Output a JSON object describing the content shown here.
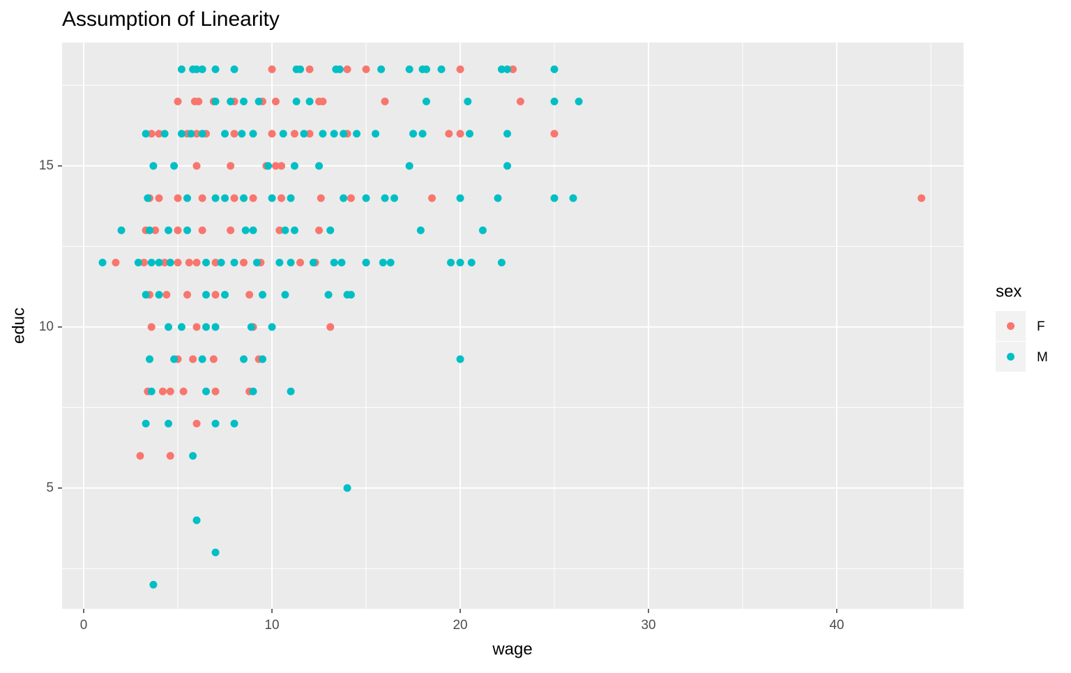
{
  "chart_data": {
    "type": "scatter",
    "title": "Assumption of Linearity",
    "x_label": "wage",
    "y_label": "educ",
    "legend_title": "sex",
    "xlim": [
      -1.15,
      46.74
    ],
    "ylim": [
      1.25,
      18.83
    ],
    "xticks": [
      0,
      10,
      20,
      30,
      40
    ],
    "yticks": [
      5,
      10,
      15
    ],
    "xminor": [
      5,
      15,
      25,
      35,
      45
    ],
    "yminor": [
      2.5,
      7.5,
      12.5,
      17.5
    ],
    "grid": true,
    "legend": "right",
    "series": [
      {
        "name": "F",
        "color": "#F8766D",
        "x": [
          10,
          12,
          14,
          15,
          20,
          22.8,
          5,
          5.9,
          6.1,
          6.9,
          8,
          9.5,
          10.2,
          12.5,
          12.7,
          16,
          23.2,
          3.6,
          4,
          5.5,
          6,
          6.5,
          8,
          10,
          11.2,
          12,
          14,
          19.4,
          20,
          25,
          6,
          7.8,
          9.7,
          10.2,
          10.5,
          3.5,
          4,
          5,
          6.3,
          8,
          9,
          10.5,
          12.6,
          14.2,
          18.5,
          44.5,
          3.3,
          3.8,
          5,
          6.3,
          7.8,
          10.4,
          12.5,
          1.7,
          3.2,
          4.3,
          5,
          5.6,
          6,
          7,
          8.5,
          9.4,
          11.5,
          12.3,
          15,
          3.5,
          4.4,
          5.5,
          7,
          8.8,
          3.6,
          6,
          9,
          13.1,
          5,
          5.8,
          6.9,
          9.3,
          3.4,
          4.2,
          4.6,
          5.3,
          7,
          8.8,
          6,
          3,
          4.6
        ],
        "values": [
          18,
          18,
          18,
          18,
          18,
          18,
          17,
          17,
          17,
          17,
          17,
          17,
          17,
          17,
          17,
          17,
          17,
          16,
          16,
          16,
          16,
          16,
          16,
          16,
          16,
          16,
          16,
          16,
          16,
          16,
          15,
          15,
          15,
          15,
          15,
          14,
          14,
          14,
          14,
          14,
          14,
          14,
          14,
          14,
          14,
          14,
          13,
          13,
          13,
          13,
          13,
          13,
          13,
          12,
          12,
          12,
          12,
          12,
          12,
          12,
          12,
          12,
          12,
          12,
          12,
          11,
          11,
          11,
          11,
          11,
          10,
          10,
          10,
          10,
          9,
          9,
          9,
          9,
          8,
          8,
          8,
          8,
          8,
          8,
          7,
          6,
          6
        ]
      },
      {
        "name": "M",
        "color": "#00BFC4",
        "x": [
          5.2,
          5.8,
          6,
          6.3,
          7,
          8,
          11.3,
          11.5,
          13.4,
          13.6,
          15.8,
          17.3,
          18,
          18.2,
          19,
          22.2,
          22.5,
          25,
          7,
          7.8,
          8.5,
          9.3,
          11.3,
          12,
          18.2,
          20.4,
          25,
          26.3,
          3.3,
          4.3,
          5.2,
          5.7,
          6.3,
          7.5,
          8.4,
          9,
          10.6,
          11.7,
          12.7,
          13.3,
          13.8,
          14.5,
          15.5,
          17.5,
          18,
          20.5,
          22.5,
          3.7,
          4.8,
          9.8,
          11.2,
          12.5,
          17.3,
          22.5,
          3.4,
          5.5,
          7,
          7.5,
          8.5,
          10,
          11,
          13.8,
          15,
          16,
          16.5,
          20,
          22,
          25,
          26,
          2,
          3.5,
          4.5,
          5.5,
          8.6,
          9,
          10.7,
          11.2,
          13.1,
          17.9,
          21.2,
          1,
          2.9,
          3.6,
          4,
          4.6,
          6.5,
          7.3,
          8,
          9.2,
          10.4,
          11,
          12.2,
          13.3,
          13.7,
          15,
          15.9,
          16.3,
          19.5,
          20,
          20.6,
          22.2,
          3.3,
          4,
          6.5,
          7.5,
          9.5,
          10.7,
          13,
          14,
          14.2,
          4.5,
          5.2,
          6.5,
          7,
          8.9,
          10,
          3.5,
          4.8,
          6.3,
          8.5,
          9.5,
          20,
          3.6,
          6.5,
          9,
          11,
          3.3,
          4.5,
          7,
          8,
          5.8,
          14,
          6,
          7,
          3.7
        ],
        "values": [
          18,
          18,
          18,
          18,
          18,
          18,
          18,
          18,
          18,
          18,
          18,
          18,
          18,
          18,
          18,
          18,
          18,
          18,
          17,
          17,
          17,
          17,
          17,
          17,
          17,
          17,
          17,
          17,
          16,
          16,
          16,
          16,
          16,
          16,
          16,
          16,
          16,
          16,
          16,
          16,
          16,
          16,
          16,
          16,
          16,
          16,
          16,
          15,
          15,
          15,
          15,
          15,
          15,
          15,
          14,
          14,
          14,
          14,
          14,
          14,
          14,
          14,
          14,
          14,
          14,
          14,
          14,
          14,
          14,
          13,
          13,
          13,
          13,
          13,
          13,
          13,
          13,
          13,
          13,
          13,
          12,
          12,
          12,
          12,
          12,
          12,
          12,
          12,
          12,
          12,
          12,
          12,
          12,
          12,
          12,
          12,
          12,
          12,
          12,
          12,
          12,
          11,
          11,
          11,
          11,
          11,
          11,
          11,
          11,
          11,
          10,
          10,
          10,
          10,
          10,
          10,
          9,
          9,
          9,
          9,
          9,
          9,
          8,
          8,
          8,
          8,
          7,
          7,
          7,
          7,
          6,
          5,
          4,
          3,
          2
        ]
      }
    ]
  }
}
